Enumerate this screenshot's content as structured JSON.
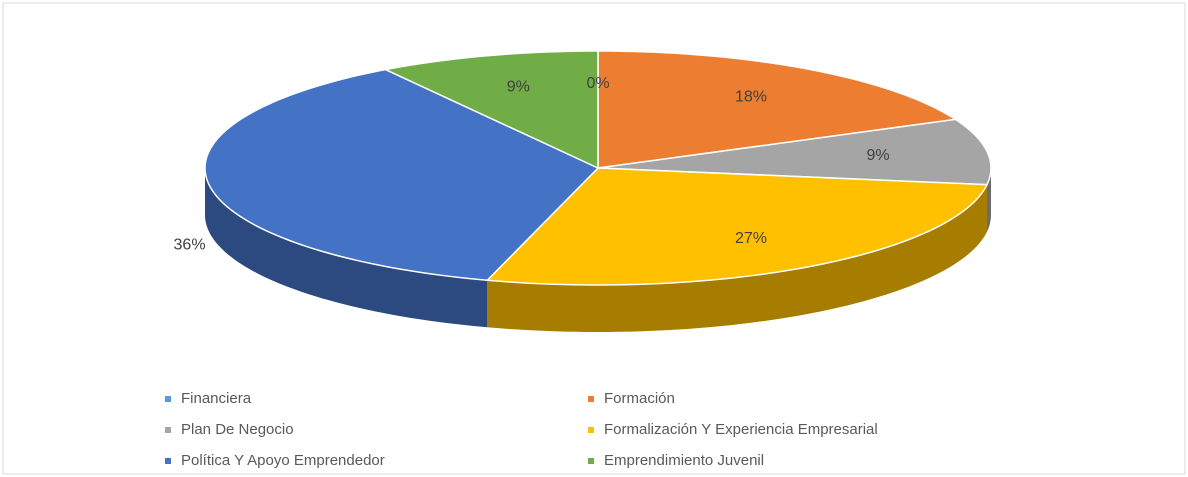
{
  "chart_data": {
    "type": "pie3d",
    "categories": [
      "Financiera",
      "Formación",
      "Plan De Negocio",
      "Formalización Y Experiencia Empresarial",
      "Política Y Apoyo Emprendedor",
      "Emprendimiento Juvenil"
    ],
    "values": [
      0,
      18,
      9,
      27,
      36,
      9
    ],
    "value_labels": [
      "0%",
      "18%",
      "9%",
      "27%",
      "36%",
      "9%"
    ],
    "colors": [
      "#5b9bd5",
      "#ed7d31",
      "#a5a5a5",
      "#ffc000",
      "#4472c4",
      "#70ad47"
    ],
    "legend": "bottom"
  }
}
